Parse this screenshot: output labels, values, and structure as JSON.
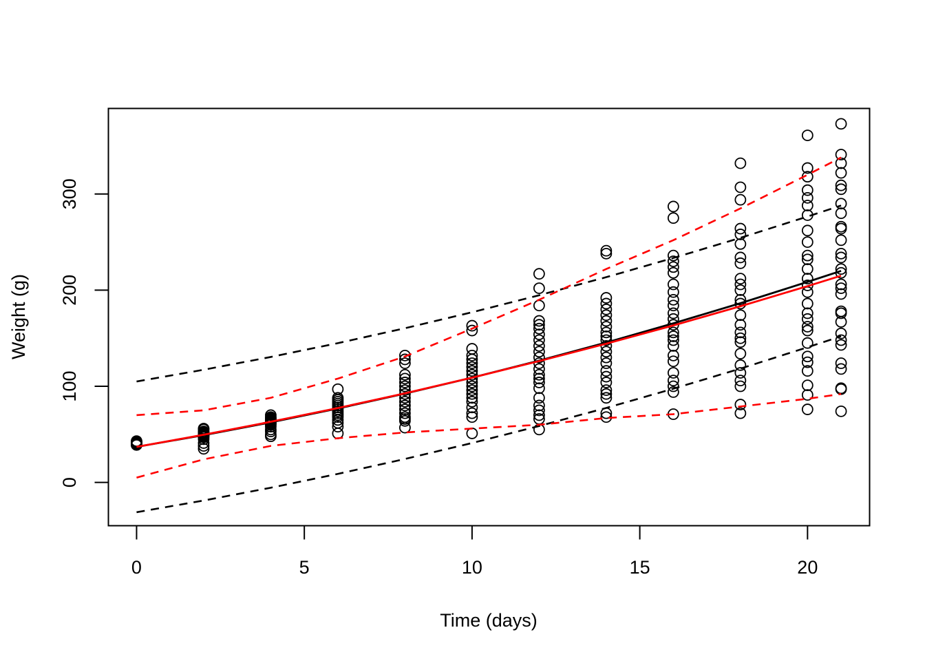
{
  "chart_data": {
    "type": "scatter",
    "title": "",
    "xlabel": "Time (days)",
    "ylabel": "Weight (g)",
    "xlim": [
      -0.84,
      21.85
    ],
    "ylim": [
      -45,
      389
    ],
    "xticks": [
      0,
      5,
      10,
      15,
      20
    ],
    "yticks": [
      0,
      100,
      200,
      300
    ],
    "grid": false,
    "points": [
      {
        "x": 0,
        "y": [
          39,
          40,
          41,
          42,
          43,
          41,
          39,
          42
        ]
      },
      {
        "x": 2,
        "y": [
          35,
          38,
          41,
          45,
          48,
          49,
          50,
          51,
          52,
          53,
          55,
          56,
          49,
          47
        ]
      },
      {
        "x": 4,
        "y": [
          48,
          50,
          53,
          55,
          58,
          60,
          62,
          63,
          64,
          65,
          66,
          67,
          68,
          70,
          61
        ]
      },
      {
        "x": 6,
        "y": [
          51,
          58,
          62,
          65,
          68,
          70,
          72,
          74,
          76,
          78,
          80,
          82,
          84,
          86,
          88,
          97
        ]
      },
      {
        "x": 8,
        "y": [
          57,
          64,
          66,
          68,
          72,
          76,
          80,
          84,
          88,
          92,
          96,
          100,
          104,
          108,
          112,
          124,
          128,
          132
        ]
      },
      {
        "x": 10,
        "y": [
          51,
          68,
          72,
          78,
          84,
          88,
          92,
          96,
          100,
          104,
          108,
          112,
          116,
          120,
          124,
          128,
          132,
          139,
          158,
          163
        ]
      },
      {
        "x": 12,
        "y": [
          55,
          66,
          70,
          75,
          80,
          88,
          98,
          104,
          108,
          112,
          118,
          124,
          130,
          136,
          142,
          148,
          154,
          160,
          164,
          168,
          184,
          202,
          217
        ]
      },
      {
        "x": 14,
        "y": [
          68,
          72,
          88,
          92,
          96,
          104,
          110,
          116,
          124,
          130,
          136,
          142,
          148,
          152,
          156,
          162,
          168,
          174,
          180,
          186,
          192,
          238,
          241
        ]
      },
      {
        "x": 16,
        "y": [
          71,
          94,
          100,
          106,
          114,
          126,
          132,
          142,
          148,
          152,
          156,
          164,
          170,
          176,
          184,
          190,
          198,
          206,
          218,
          224,
          230,
          236,
          275,
          287
        ]
      },
      {
        "x": 18,
        "y": [
          72,
          81,
          100,
          106,
          114,
          122,
          134,
          146,
          150,
          156,
          164,
          174,
          186,
          190,
          200,
          206,
          212,
          228,
          234,
          248,
          258,
          264,
          294,
          307,
          332
        ]
      },
      {
        "x": 20,
        "y": [
          76,
          91,
          101,
          116,
          125,
          131,
          145,
          158,
          162,
          170,
          176,
          186,
          198,
          205,
          212,
          222,
          232,
          236,
          250,
          262,
          278,
          288,
          296,
          304,
          318,
          327,
          361
        ]
      },
      {
        "x": 21,
        "y": [
          74,
          97,
          98,
          118,
          124,
          143,
          148,
          155,
          167,
          176,
          178,
          196,
          202,
          206,
          218,
          222,
          234,
          238,
          252,
          264,
          266,
          280,
          290,
          305,
          309,
          322,
          332,
          341,
          373
        ]
      }
    ],
    "lines": {
      "x": [
        0,
        2,
        4,
        6,
        8,
        10,
        12,
        14,
        16,
        18,
        20,
        21
      ],
      "series": [
        {
          "color": "#000000",
          "style": "solid",
          "y": [
            37,
            49.2,
            62.5,
            76.9,
            92.4,
            109,
            126.7,
            145.5,
            165.5,
            186.4,
            208.6,
            220
          ]
        },
        {
          "color": "#000000",
          "style": "dashed",
          "y": [
            105,
            117.2,
            130.5,
            144.9,
            160.4,
            177,
            194.7,
            213.5,
            233.5,
            254.4,
            276.6,
            288
          ]
        },
        {
          "color": "#000000",
          "style": "dashed",
          "y": [
            -31,
            -18.8,
            -5.5,
            8.9,
            24.4,
            41,
            58.7,
            77.5,
            97.5,
            118.4,
            140.6,
            152
          ]
        },
        {
          "color": "#ff0000",
          "style": "solid",
          "y": [
            37,
            49.6,
            63.1,
            77.4,
            92.7,
            109,
            126.2,
            144.3,
            163.3,
            183.3,
            204.2,
            215
          ]
        },
        {
          "color": "#ff0000",
          "style": "dashed",
          "y": [
            70,
            75,
            88,
            108,
            131,
            160,
            190,
            222,
            252,
            285,
            320,
            338
          ]
        },
        {
          "color": "#ff0000",
          "style": "dashed",
          "y": [
            5,
            24,
            38,
            46,
            52,
            56,
            60,
            67,
            71,
            79,
            87,
            92
          ]
        }
      ]
    }
  }
}
